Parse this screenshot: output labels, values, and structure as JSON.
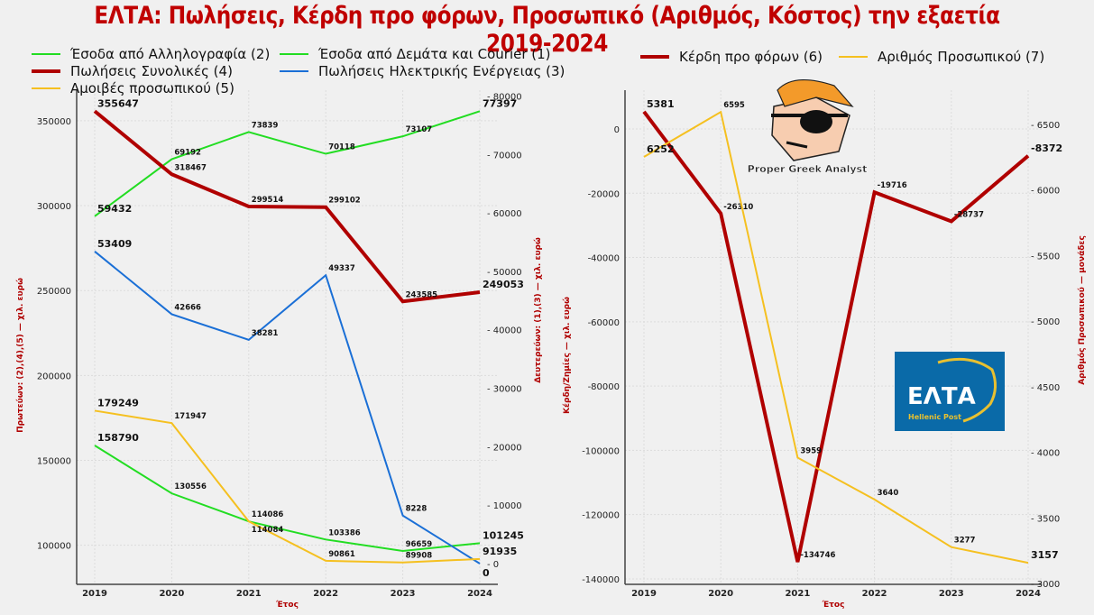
{
  "title": "ΕΛΤΑ: Πωλήσεις, Κέρδη προ φόρων, Προσωπικό (Αριθμός, Κόστος) την εξαετία 2019-2024",
  "chart_data": [
    {
      "type": "line",
      "x": [
        2019,
        2020,
        2021,
        2022,
        2023,
        2024
      ],
      "xlabel": "Έτος",
      "ylabel": "Πρωτεύων: (2),(4),(5) — χιλ. ευρώ",
      "y2label": "Δευτερεύων: (1),(3) — χιλ. ευρώ",
      "ylim": [
        77000,
        368000
      ],
      "y2lim": [
        -3550,
        81000
      ],
      "yticks": [
        100000,
        150000,
        200000,
        250000,
        300000,
        350000
      ],
      "y2ticks": [
        0,
        10000,
        20000,
        30000,
        40000,
        50000,
        60000,
        70000,
        80000
      ],
      "grid": true,
      "legend_position": "top-left",
      "series": [
        {
          "name": "Έσοδα από Αλληλογραφία (2)",
          "axis": "y",
          "color": "#22dd22",
          "width": 2,
          "values": [
            158790,
            130556,
            114086,
            103386,
            96659,
            101245
          ]
        },
        {
          "name": "Έσοδα από Δεμάτα και Courier (1)",
          "axis": "y2",
          "color": "#22dd22",
          "width": 2,
          "values": [
            59432,
            69192,
            73839,
            70118,
            73107,
            77397
          ]
        },
        {
          "name": "Πωλήσεις Συνολικές (4)",
          "axis": "y",
          "color": "#b00000",
          "width": 4,
          "values": [
            355647,
            318467,
            299514,
            299102,
            243585,
            249053
          ]
        },
        {
          "name": "Πωλήσεις Ηλεκτρικής Ενέργειας (3)",
          "axis": "y2",
          "color": "#1a6fd6",
          "width": 2,
          "values": [
            53409,
            42666,
            38281,
            49337,
            8228,
            0
          ]
        },
        {
          "name": "Αμοιβές προσωπικού (5)",
          "axis": "y",
          "color": "#f5c020",
          "width": 2,
          "values": [
            179249,
            171947,
            114084,
            90861,
            89908,
            91935
          ]
        }
      ]
    },
    {
      "type": "line",
      "x": [
        2019,
        2020,
        2021,
        2022,
        2023,
        2024
      ],
      "xlabel": "Έτος",
      "ylabel": "Κέρδη/Ζημίες — χιλ. ευρώ",
      "y2label": "Αριθμός Προσωπικού — μονάδες",
      "ylim": [
        -141700,
        12060
      ],
      "y2lim": [
        2993,
        6761
      ],
      "yticks": [
        -140000,
        -120000,
        -100000,
        -80000,
        -60000,
        -40000,
        -20000,
        0
      ],
      "y2ticks": [
        3000,
        3500,
        4000,
        4500,
        5000,
        5500,
        6000,
        6500
      ],
      "grid": true,
      "legend_position": "top",
      "series": [
        {
          "name": "Κέρδη προ φόρων (6)",
          "axis": "y",
          "color": "#b00000",
          "width": 4,
          "values": [
            5381,
            -26310,
            -134746,
            -19716,
            -28737,
            -8372
          ]
        },
        {
          "name": "Αριθμός Προσωπικού (7)",
          "axis": "y2",
          "color": "#f5c020",
          "width": 2,
          "values": [
            6252,
            6595,
            3959,
            3640,
            3277,
            3157
          ]
        }
      ]
    }
  ],
  "logos": {
    "elta_main": "ΕΛΤΑ",
    "elta_sub": "Hellenic Post",
    "mascot_caption": "Proper Greek Analyst"
  }
}
